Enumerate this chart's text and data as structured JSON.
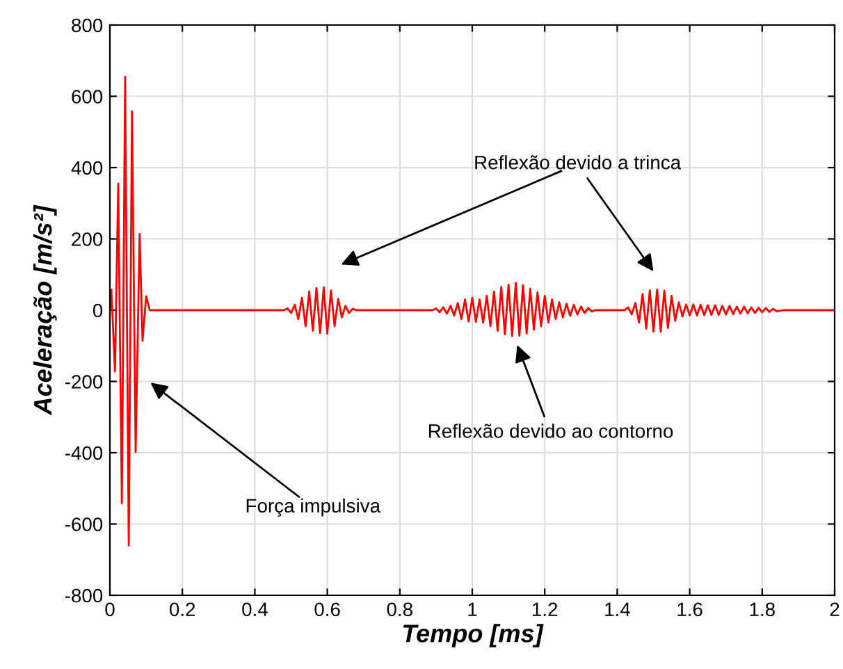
{
  "chart_data": {
    "type": "line",
    "xlabel": "Tempo [ms]",
    "ylabel": "Aceleração [m/s²]",
    "xlim": [
      0,
      2
    ],
    "ylim": [
      -800,
      800
    ],
    "xticks": [
      0,
      0.2,
      0.4,
      0.6,
      0.8,
      1,
      1.2,
      1.4,
      1.6,
      1.8,
      2
    ],
    "yticks": [
      -800,
      -600,
      -400,
      -200,
      0,
      200,
      400,
      600,
      800
    ],
    "grid": true,
    "marker": "none",
    "line_style": "solid",
    "annotations": [
      "Reflexão devido a trinca",
      "Reflexão devido ao contorno",
      "Força impulsiva"
    ],
    "series": [
      {
        "color": "#ff0000",
        "x": [
          0,
          0.004,
          0.014,
          0.023,
          0.033,
          0.042,
          0.052,
          0.061,
          0.071,
          0.082,
          0.09,
          0.1,
          0.11,
          0.48,
          0.49,
          0.5,
          0.51,
          0.52,
          0.53,
          0.54,
          0.55,
          0.56,
          0.57,
          0.58,
          0.59,
          0.6,
          0.61,
          0.62,
          0.63,
          0.64,
          0.65,
          0.66,
          0.67,
          0.68,
          0.89,
          0.9,
          0.91,
          0.92,
          0.93,
          0.94,
          0.95,
          0.96,
          0.97,
          0.98,
          0.99,
          1.0,
          1.01,
          1.02,
          1.03,
          1.04,
          1.05,
          1.06,
          1.07,
          1.08,
          1.09,
          1.1,
          1.11,
          1.12,
          1.13,
          1.14,
          1.15,
          1.16,
          1.17,
          1.18,
          1.19,
          1.2,
          1.21,
          1.22,
          1.23,
          1.24,
          1.25,
          1.26,
          1.27,
          1.28,
          1.29,
          1.3,
          1.31,
          1.32,
          1.33,
          1.34,
          1.42,
          1.43,
          1.44,
          1.45,
          1.46,
          1.47,
          1.48,
          1.49,
          1.5,
          1.51,
          1.52,
          1.53,
          1.54,
          1.55,
          1.56,
          1.57,
          1.58,
          1.59,
          1.6,
          1.61,
          1.62,
          1.63,
          1.64,
          1.65,
          1.66,
          1.67,
          1.68,
          1.69,
          1.7,
          1.71,
          1.72,
          1.73,
          1.74,
          1.75,
          1.76,
          1.77,
          1.78,
          1.79,
          1.8,
          1.81,
          1.82,
          1.83,
          1.84,
          1.86,
          2.0
        ],
        "values": [
          0,
          58,
          -172,
          355,
          -542,
          655,
          -660,
          558,
          -398,
          214,
          -86,
          39,
          0,
          0,
          5,
          -8,
          15,
          -25,
          35,
          -45,
          52,
          -58,
          62,
          -64,
          64,
          -66,
          55,
          -45,
          32,
          -20,
          12,
          -8,
          4,
          0,
          0,
          5,
          -6,
          8,
          -10,
          12,
          -15,
          20,
          -25,
          30,
          -32,
          35,
          -33,
          30,
          -35,
          40,
          -45,
          52,
          -58,
          65,
          -68,
          72,
          -73,
          77,
          -72,
          70,
          -65,
          60,
          -55,
          50,
          -45,
          40,
          -35,
          30,
          -25,
          22,
          -20,
          18,
          -16,
          15,
          -12,
          10,
          -8,
          6,
          -4,
          0,
          0,
          8,
          -12,
          20,
          -35,
          45,
          -52,
          56,
          -60,
          58,
          -60,
          55,
          -50,
          40,
          -30,
          22,
          -18,
          16,
          -15,
          16,
          -15,
          15,
          -14,
          14,
          -13,
          14,
          -13,
          12,
          -12,
          12,
          -11,
          10,
          -10,
          10,
          -9,
          8,
          -8,
          7,
          -6,
          6,
          -5,
          4,
          -3,
          0,
          0
        ]
      }
    ]
  }
}
